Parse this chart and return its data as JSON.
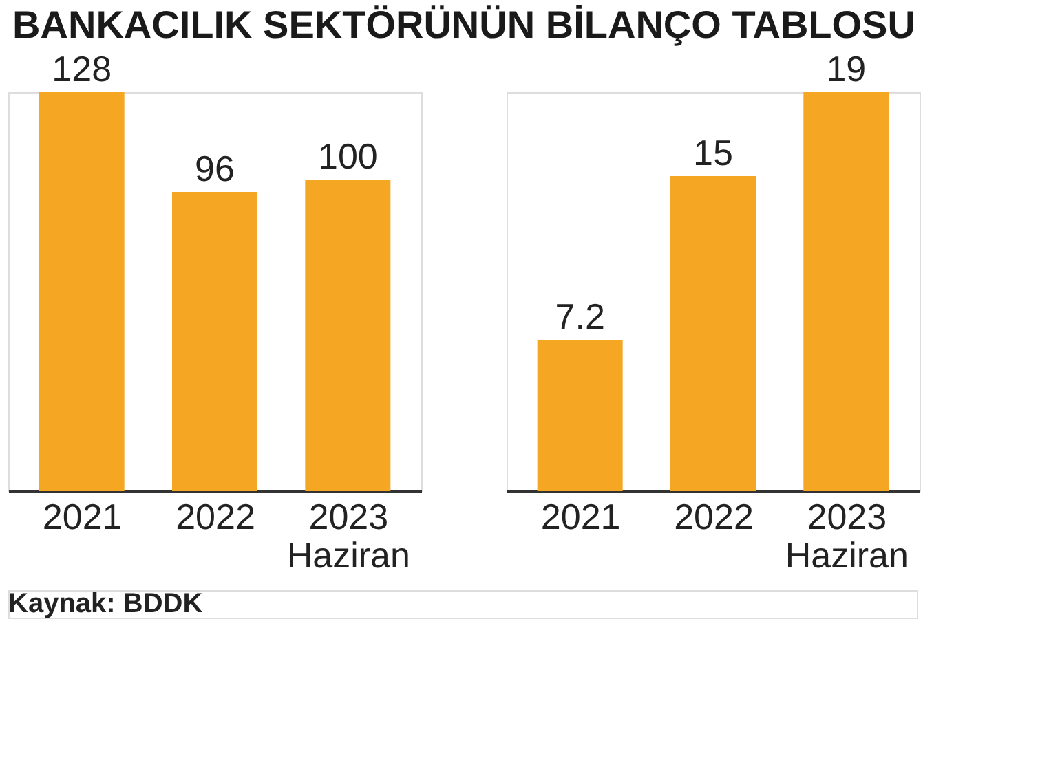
{
  "chart_data": [
    {
      "type": "bar",
      "title": "BANKACILIK SEKTÖRÜNÜN BİLANÇO TABLOSU",
      "categories": [
        "2021",
        "2022",
        "2023 Haziran"
      ],
      "values": [
        128,
        96,
        100
      ],
      "color": "#f5a623",
      "data_labels": true,
      "tick_labels": "x",
      "annotations": [
        "Kaynak: BDDK"
      ]
    },
    {
      "type": "bar",
      "categories": [
        "2021",
        "2022",
        "2023 Haziran"
      ],
      "values": [
        7.2,
        15,
        19
      ],
      "color": "#f5a623",
      "data_labels": true,
      "tick_labels": "x"
    }
  ]
}
